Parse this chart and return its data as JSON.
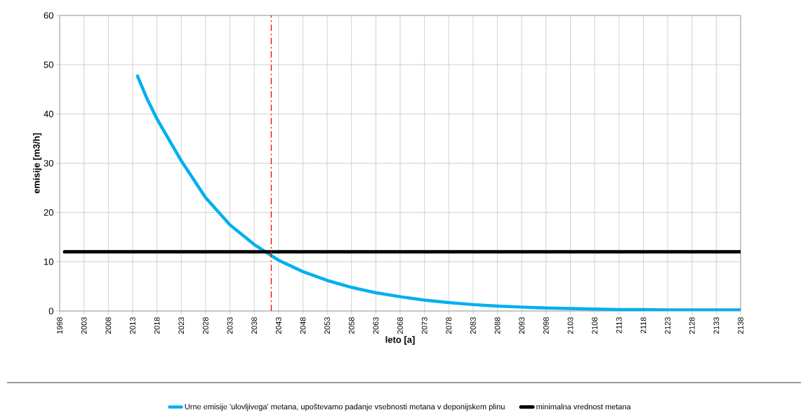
{
  "chart_data": {
    "type": "line",
    "xlabel": "leto [a]",
    "ylabel": "emisije [m3/h]",
    "series": [
      {
        "name": "Urne emisije 'ulovljivega' metana, upoštevamo padanje vsebnosti metana v deponijskem plinu",
        "color": "#00b0f0",
        "x": [
          2014,
          2016,
          2018,
          2023,
          2028,
          2033,
          2038,
          2043,
          2048,
          2053,
          2058,
          2063,
          2068,
          2073,
          2078,
          2083,
          2088,
          2093,
          2098,
          2103,
          2108,
          2113,
          2118,
          2123,
          2128,
          2133,
          2138
        ],
        "values": [
          47.7,
          43,
          39,
          30.5,
          23,
          17.5,
          13.5,
          10.3,
          8.0,
          6.2,
          4.8,
          3.7,
          2.9,
          2.2,
          1.7,
          1.3,
          1.0,
          0.8,
          0.6,
          0.5,
          0.4,
          0.3,
          0.3,
          0.2,
          0.2,
          0.2,
          0.2
        ]
      },
      {
        "name": "minimalna vrednost metana",
        "color": "#000000",
        "x": [
          1999,
          2138
        ],
        "values": [
          12,
          12
        ]
      }
    ],
    "xlim": [
      1998,
      2138
    ],
    "xticks": [
      1998,
      2003,
      2008,
      2013,
      2018,
      2023,
      2028,
      2033,
      2038,
      2043,
      2048,
      2053,
      2058,
      2063,
      2068,
      2073,
      2078,
      2083,
      2088,
      2093,
      2098,
      2103,
      2108,
      2113,
      2118,
      2123,
      2128,
      2133,
      2138
    ],
    "ylim": [
      0,
      60
    ],
    "yticks": [
      0,
      10,
      20,
      30,
      40,
      50,
      60
    ],
    "ref_lines": [
      {
        "axis": "x",
        "value": 2041.5,
        "color": "#ff0000",
        "line_style": "dashdot"
      }
    ],
    "grid": true,
    "legend": "bottom"
  }
}
